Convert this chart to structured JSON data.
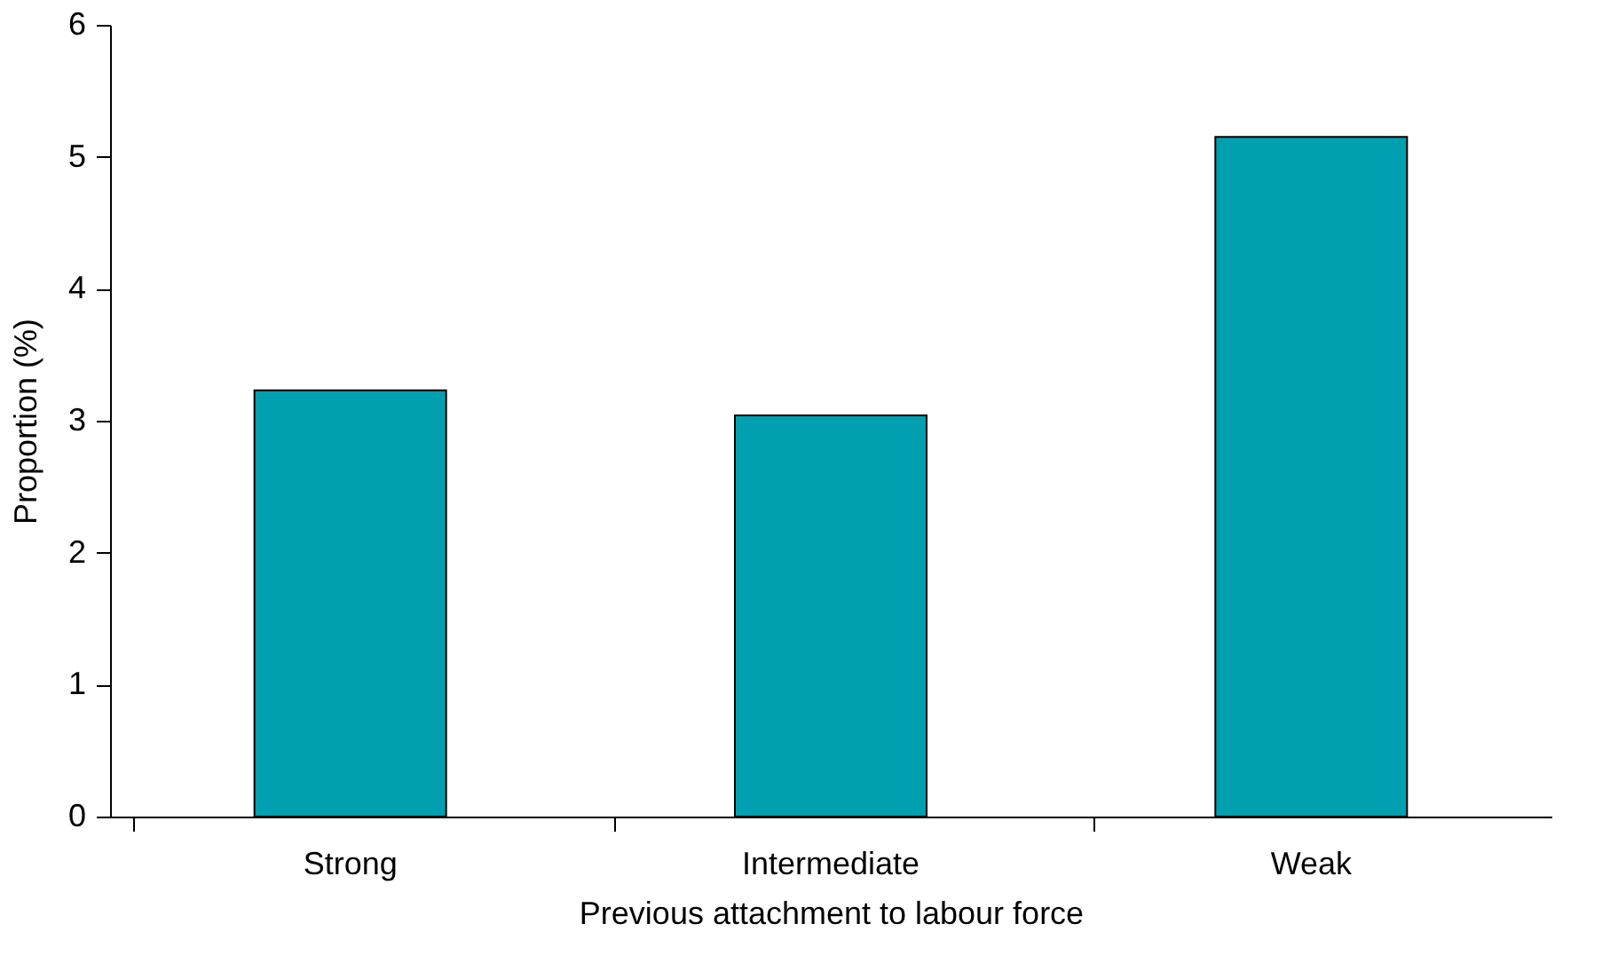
{
  "chart_data": {
    "type": "bar",
    "xlabel": "Previous attachment to labour force",
    "ylabel": "Proportion (%)",
    "categories": [
      "Strong",
      "Intermediate",
      "Weak"
    ],
    "series": [
      {
        "color": "#00a0b0",
        "values": [
          3.23,
          3.04,
          5.15
        ]
      }
    ],
    "ylim": [
      0,
      6
    ],
    "yticks": [
      0,
      1,
      2,
      3,
      4,
      5,
      6
    ],
    "grid": false,
    "legend": false
  }
}
